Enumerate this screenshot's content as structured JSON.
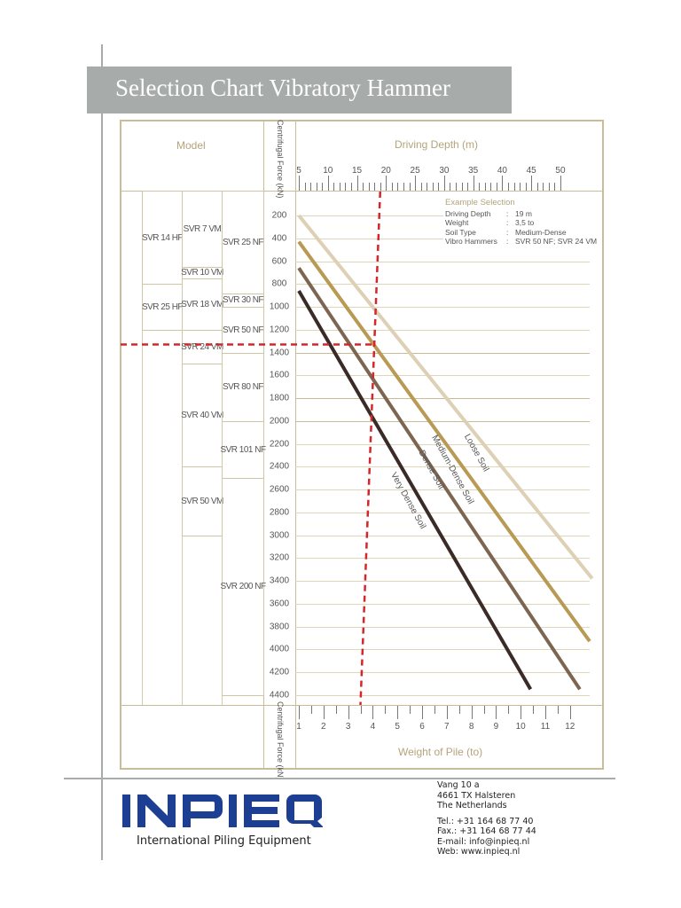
{
  "page": {
    "title": "Selection Chart Vibratory Hammer",
    "colors": {
      "title_bar": "#a7acab",
      "frame": "#c9bd98",
      "grid": "#d9d2b6",
      "header_text": "#b3a47a",
      "selection_line": "#d4262b",
      "logo": "#1c3f94"
    }
  },
  "chart_header": {
    "model_label": "Model",
    "force_label_top": "Centrifugal Force (kN)",
    "force_label_bottom": "Centrifugal Force (kN)",
    "depth_label": "Driving Depth (m)",
    "weight_label": "Weight of Pile (to)"
  },
  "models": {
    "hf": [
      {
        "label": "SVR 14 HF",
        "from": 0,
        "to": 800
      },
      {
        "label": "SVR 25 HF",
        "from": 800,
        "to": 1200
      }
    ],
    "vm": [
      {
        "label": "SVR 7 VM",
        "from": 0,
        "to": 650
      },
      {
        "label": "SVR 10 VM",
        "from": 650,
        "to": 750
      },
      {
        "label": "SVR 18 VM",
        "from": 750,
        "to": 1200
      },
      {
        "label": "SVR 24 VM",
        "from": 1200,
        "to": 1500
      },
      {
        "label": "SVR 40 VM",
        "from": 1500,
        "to": 2400
      },
      {
        "label": "SVR 50 VM",
        "from": 2400,
        "to": 3000
      }
    ],
    "nf": [
      {
        "label": "SVR 25 NF",
        "from": 0,
        "to": 880
      },
      {
        "label": "SVR 30 NF",
        "from": 880,
        "to": 1000
      },
      {
        "label": "SVR 50 NF",
        "from": 1000,
        "to": 1400
      },
      {
        "label": "SVR 80 NF",
        "from": 1400,
        "to": 2000
      },
      {
        "label": "SVR 101 NF",
        "from": 2000,
        "to": 2500
      },
      {
        "label": "SVR 200 NF",
        "from": 2500,
        "to": 4400
      }
    ]
  },
  "example_selection": {
    "title": "Example Selection",
    "rows": [
      {
        "key": "Driving Depth",
        "value": "19 m"
      },
      {
        "key": "Weight",
        "value": "3,5 to"
      },
      {
        "key": "Soil Type",
        "value": "Medium-Dense"
      },
      {
        "key": "Vibro Hammers",
        "value": "SVR 50 NF;  SVR 24 VM"
      }
    ],
    "colon": ":"
  },
  "chart_data": {
    "type": "line",
    "title": "Selection Chart Vibratory Hammer",
    "xlabel_top": "Driving Depth (m)",
    "xlabel_bottom": "Weight of Pile (to)",
    "ylabel": "Centrifugal Force (kN)",
    "x_top_ticks": [
      5,
      10,
      15,
      20,
      25,
      30,
      35,
      40,
      45,
      50
    ],
    "x_bottom_ticks": [
      1,
      2,
      3,
      4,
      5,
      6,
      7,
      8,
      9,
      10,
      11,
      12
    ],
    "y_ticks": [
      200,
      400,
      600,
      800,
      1000,
      1200,
      1400,
      1600,
      1800,
      2000,
      2200,
      2400,
      2600,
      2800,
      3000,
      3200,
      3400,
      3600,
      3800,
      4000,
      4200,
      4400
    ],
    "y_tick_labels": [
      "200",
      "400",
      "600",
      "800",
      "1000",
      "1200",
      "1400",
      "1600",
      "1800",
      "2000",
      "2200",
      "2400",
      "2600",
      "2800",
      "3000",
      "3200",
      "3400",
      "3600",
      "3800",
      "4000",
      "4200",
      "4400"
    ],
    "ylim": [
      200,
      4400
    ],
    "grid": true,
    "series": [
      {
        "name": "Loose Soil",
        "color": "#ddd0b4",
        "points": [
          [
            1,
            200
          ],
          [
            12.9,
            3380
          ]
        ]
      },
      {
        "name": "Medium-Dense Soil",
        "color": "#b99a55",
        "points": [
          [
            1,
            430
          ],
          [
            12.8,
            3930
          ]
        ]
      },
      {
        "name": "Dense Soil",
        "color": "#7d6651",
        "points": [
          [
            1,
            660
          ],
          [
            12.4,
            4350
          ]
        ]
      },
      {
        "name": "Very Dense Soil",
        "color": "#3b2b26",
        "points": [
          [
            1,
            860
          ],
          [
            10.4,
            4350
          ]
        ]
      }
    ],
    "annotations": [
      {
        "type": "selection",
        "driving_depth_m": 19,
        "weight_to": 3.5,
        "force_kN": 1330,
        "soil": "Medium-Dense"
      }
    ]
  },
  "footer": {
    "logo_text": "INPIEQ",
    "tagline": "International Piling Equipment",
    "address": [
      "Vang 10 a",
      "4661 TX Halsteren",
      "The Netherlands"
    ],
    "contact": [
      "Tel.:  +31 164 68 77 40",
      "Fax.: +31 164 68 77 44",
      "E-mail: info@inpieq.nl",
      "Web: www.inpieq.nl"
    ]
  }
}
